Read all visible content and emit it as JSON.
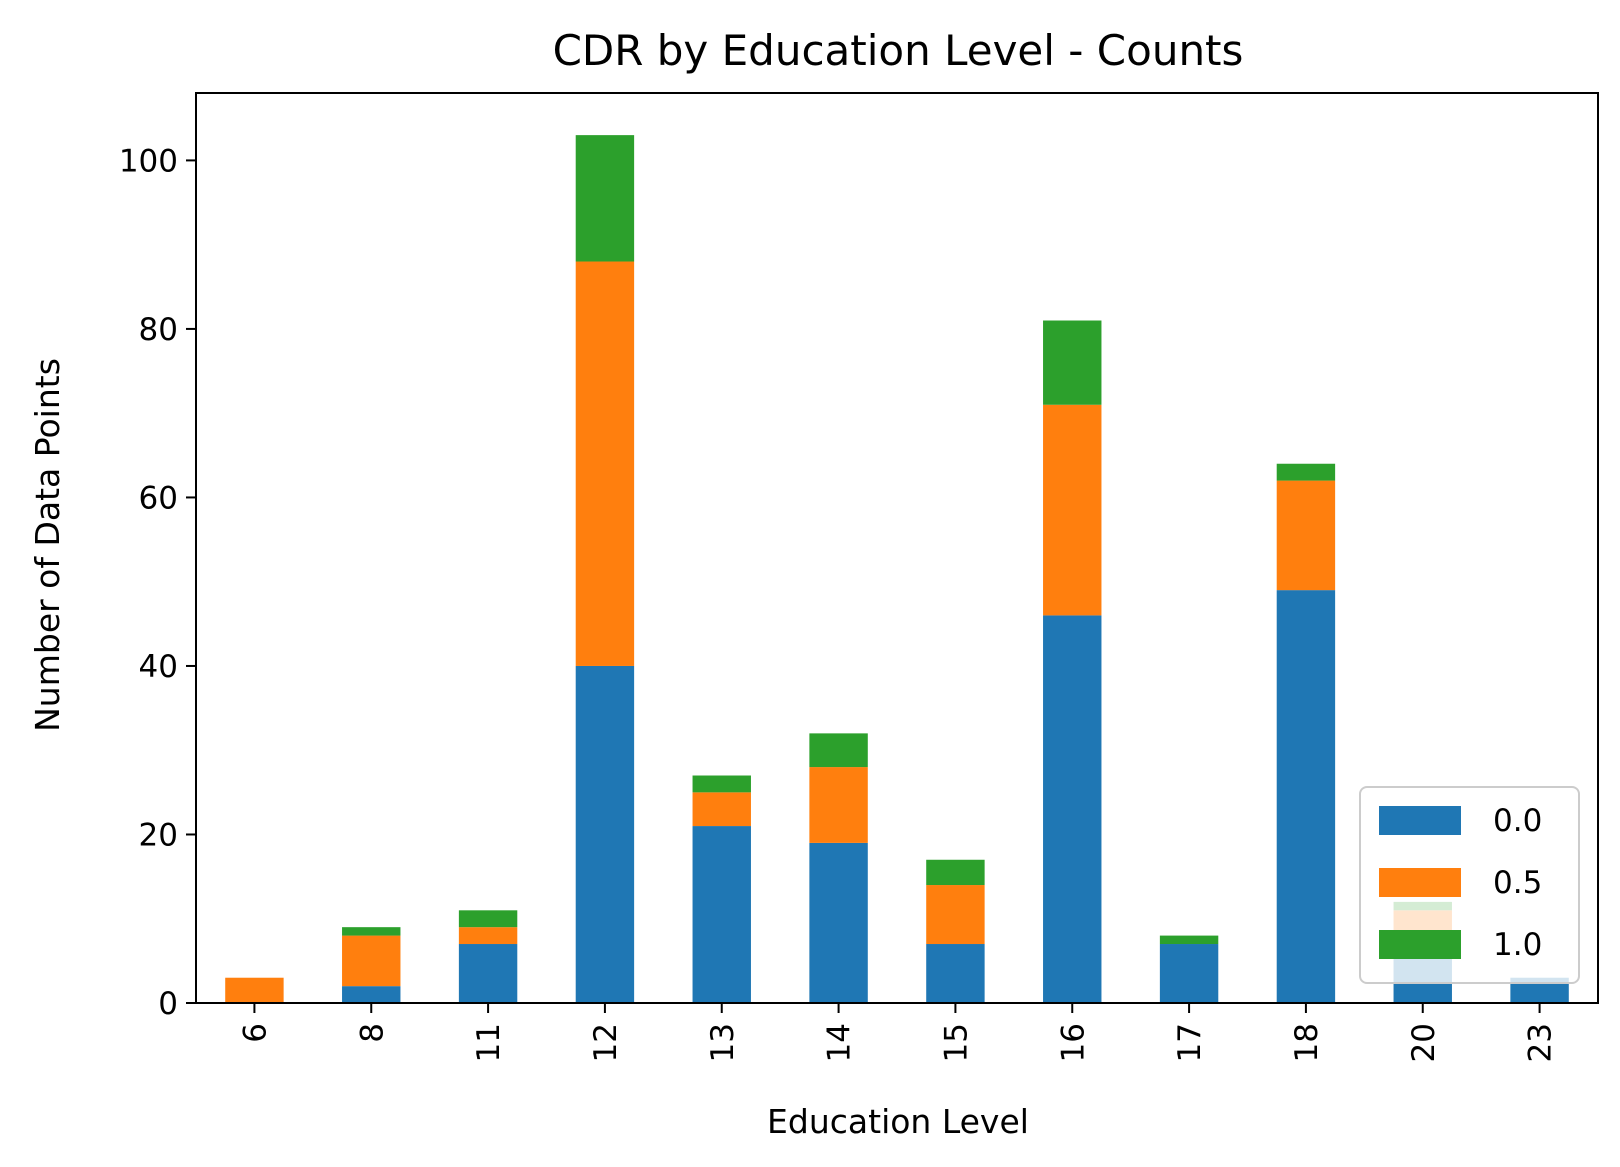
{
  "chart_data": {
    "type": "bar",
    "stacked": true,
    "title": "CDR by Education Level - Counts",
    "xlabel": "Education Level",
    "ylabel": "Number of Data Points",
    "categories": [
      "6",
      "8",
      "11",
      "12",
      "13",
      "14",
      "15",
      "16",
      "17",
      "18",
      "20",
      "23"
    ],
    "series": [
      {
        "name": "0.0",
        "color": "#1f77b4",
        "values": [
          0,
          2,
          7,
          40,
          21,
          19,
          7,
          46,
          7,
          49,
          7,
          3
        ]
      },
      {
        "name": "0.5",
        "color": "#ff7f0e",
        "values": [
          3,
          6,
          2,
          48,
          4,
          9,
          7,
          25,
          0,
          13,
          4,
          0
        ]
      },
      {
        "name": "1.0",
        "color": "#2ca02c",
        "values": [
          0,
          1,
          2,
          15,
          2,
          4,
          3,
          10,
          1,
          2,
          1,
          0
        ]
      }
    ],
    "ylim": [
      0,
      108
    ],
    "yticks": [
      0,
      20,
      40,
      60,
      80,
      100
    ],
    "grid": false,
    "legend": {
      "position": "lower right"
    }
  }
}
